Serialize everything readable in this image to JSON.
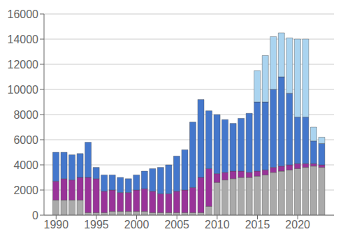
{
  "chart_data": {
    "type": "bar",
    "stacked": true,
    "grid": true,
    "x": [
      1990,
      1991,
      1992,
      1993,
      1994,
      1995,
      1996,
      1997,
      1998,
      1999,
      2000,
      2001,
      2002,
      2003,
      2004,
      2005,
      2006,
      2007,
      2008,
      2009,
      2010,
      2011,
      2012,
      2013,
      2014,
      2015,
      2016,
      2017,
      2018,
      2019,
      2020,
      2021,
      2022,
      2023
    ],
    "series": [
      {
        "color": "#aaaaaa",
        "values": [
          1200,
          1200,
          1200,
          1200,
          200,
          200,
          200,
          300,
          300,
          300,
          300,
          300,
          200,
          200,
          200,
          200,
          200,
          200,
          200,
          700,
          2600,
          2800,
          2900,
          3000,
          3000,
          3100,
          3200,
          3400,
          3500,
          3600,
          3700,
          3800,
          3900,
          3800
        ]
      },
      {
        "color": "#993399",
        "values": [
          1500,
          1700,
          1600,
          1800,
          2800,
          2700,
          1700,
          1700,
          1500,
          1500,
          1700,
          1800,
          1700,
          1500,
          1500,
          1700,
          1800,
          2000,
          2800,
          3000,
          700,
          600,
          600,
          500,
          400,
          400,
          400,
          400,
          400,
          400,
          400,
          300,
          200,
          200
        ]
      },
      {
        "color": "#4477cc",
        "values": [
          2300,
          2100,
          2000,
          1900,
          2800,
          900,
          1300,
          1200,
          1200,
          1100,
          1200,
          1400,
          1800,
          2100,
          2300,
          2800,
          3200,
          5200,
          6200,
          4600,
          4700,
          4200,
          3800,
          4200,
          4700,
          5500,
          5400,
          6200,
          7100,
          5700,
          3700,
          3700,
          1800,
          1700
        ]
      },
      {
        "color": "#aad4f0",
        "values": [
          0,
          0,
          0,
          0,
          0,
          0,
          0,
          0,
          0,
          0,
          0,
          0,
          0,
          0,
          0,
          0,
          0,
          0,
          0,
          0,
          0,
          0,
          0,
          0,
          0,
          2500,
          3700,
          4200,
          3500,
          4400,
          6200,
          6200,
          1100,
          500
        ]
      }
    ],
    "xlim": [
      1988.5,
      2024.5
    ],
    "xticks": [
      1990,
      1995,
      2000,
      2005,
      2010,
      2015,
      2020
    ],
    "ylim": [
      0,
      16000
    ],
    "yticks": [
      0,
      2000,
      4000,
      6000,
      8000,
      10000,
      12000,
      14000,
      16000
    ]
  }
}
